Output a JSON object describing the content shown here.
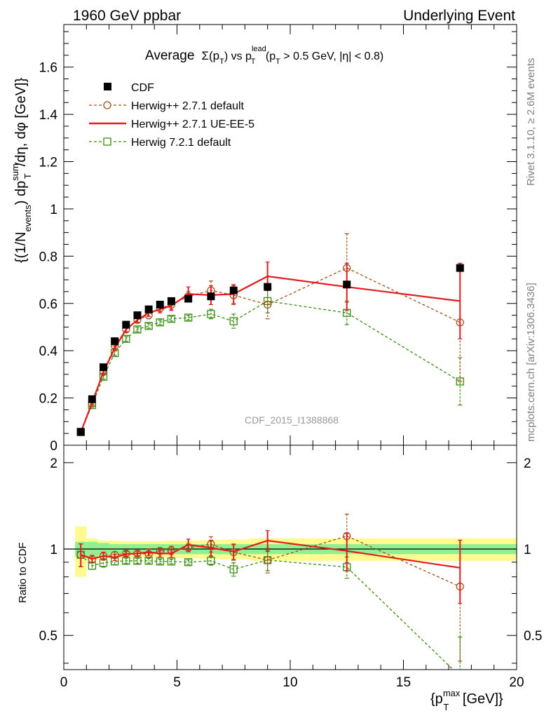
{
  "header": {
    "left": "1960 GeV ppbar",
    "right": "Underlying Event"
  },
  "side_labels": {
    "rivet": "Rivet 3.1.10, ≥ 2.6M events",
    "mcplots": "mcplots.cern.ch [arXiv:1306.3436]"
  },
  "watermark": "CDF_2015_I1388868",
  "main_plot": {
    "title_prefix": "Average",
    "title_sigma": "Σ(p",
    "title_T": "T",
    "title_mid": ") vs p",
    "title_lead": "lead",
    "title_T2": "T",
    "title_cut": " (p",
    "title_T3": "T",
    "title_end": " > 0.5 GeV, |η| < 0.8)",
    "ylabel": "{(1/N_events) dp_T^sum/dη, dφ [GeV]}",
    "ylabel_parts": {
      "a": "{(1/N",
      "b": "events",
      "c": ") dp",
      "d": "sum",
      "e": "T",
      "f": "/dη, dφ [GeV]}"
    },
    "yticks": [
      "0",
      "0.2",
      "0.4",
      "0.6",
      "0.8",
      "1",
      "1.2",
      "1.4",
      "1.6"
    ]
  },
  "ratio_plot": {
    "ylabel": "Ratio to CDF",
    "yticks_left": [
      "0.5",
      "1",
      "2"
    ],
    "yticks_right": [
      "0.5",
      "1",
      "2"
    ]
  },
  "xaxis": {
    "label_a": "{p",
    "label_sup": "max",
    "label_sub": "T",
    "label_b": " [GeV]}",
    "ticks": [
      "0",
      "5",
      "10",
      "15",
      "20"
    ]
  },
  "legend": [
    {
      "name": "CDF",
      "color": "#000000",
      "style": "marker-square"
    },
    {
      "name": "Herwig++ 2.7.1 default",
      "color": "#a0521a",
      "style": "dashed-circle"
    },
    {
      "name": "Herwig++ 2.7.1 UE-EE-5",
      "color": "#e41a1c",
      "style": "solid"
    },
    {
      "name": "Herwig 7.2.1 default",
      "color": "#3a8e10",
      "style": "dashed-square"
    }
  ],
  "chart_data": {
    "type": "line",
    "title": "Average Σ(p_T) vs p_T^lead (p_T > 0.5 GeV, |η| < 0.8)",
    "xlabel": "{p_T^max [GeV]}",
    "ylabel": "{(1/N_events) dp_T^sum/dη, dφ [GeV]}",
    "xlim": [
      0,
      20
    ],
    "ylim": [
      0,
      1.78
    ],
    "ratio_ylim_log": [
      0.38,
      2.3
    ],
    "x": [
      0.75,
      1.25,
      1.75,
      2.25,
      2.75,
      3.25,
      3.75,
      4.25,
      4.75,
      5.5,
      6.5,
      7.5,
      9.0,
      12.5,
      17.5
    ],
    "series": [
      {
        "name": "CDF",
        "values": [
          0.057,
          0.195,
          0.33,
          0.44,
          0.51,
          0.55,
          0.575,
          0.595,
          0.61,
          0.62,
          0.63,
          0.655,
          0.67,
          0.68,
          0.75
        ],
        "band_inner": [
          0.06,
          0.06,
          0.05,
          0.04,
          0.04,
          0.04,
          0.04,
          0.04,
          0.04,
          0.04,
          0.04,
          0.04,
          0.04,
          0.04,
          0.04
        ],
        "band_outer": [
          0.2,
          0.09,
          0.07,
          0.07,
          0.065,
          0.065,
          0.065,
          0.065,
          0.07,
          0.07,
          0.075,
          0.08,
          0.09,
          0.09,
          0.09
        ]
      },
      {
        "name": "Herwig++ 2.7.1 default",
        "values": [
          0.055,
          0.175,
          0.31,
          0.42,
          0.49,
          0.53,
          0.55,
          0.58,
          0.595,
          0.63,
          0.655,
          0.635,
          0.595,
          0.75,
          0.52
        ],
        "errors": [
          0.005,
          0.005,
          0.01,
          0.01,
          0.01,
          0.01,
          0.015,
          0.015,
          0.02,
          0.02,
          0.04,
          0.04,
          0.06,
          0.145,
          0.25
        ]
      },
      {
        "name": "Herwig++ 2.7.1 UE-EE-5",
        "values": [
          0.055,
          0.18,
          0.31,
          0.41,
          0.49,
          0.53,
          0.56,
          0.575,
          0.59,
          0.64,
          0.635,
          0.64,
          0.715,
          0.67,
          0.61
        ],
        "errors": [
          0.005,
          0.005,
          0.01,
          0.01,
          0.01,
          0.01,
          0.015,
          0.015,
          0.02,
          0.03,
          0.04,
          0.04,
          0.06,
          0.1,
          0.16
        ]
      },
      {
        "name": "Herwig 7.2.1 default",
        "values": [
          0.055,
          0.17,
          0.29,
          0.39,
          0.45,
          0.49,
          0.505,
          0.52,
          0.535,
          0.54,
          0.555,
          0.525,
          0.61,
          0.56,
          0.27
        ],
        "errors": [
          0.005,
          0.005,
          0.01,
          0.01,
          0.01,
          0.01,
          0.01,
          0.01,
          0.01,
          0.01,
          0.02,
          0.03,
          0.05,
          0.05,
          0.1
        ]
      }
    ],
    "ratio": {
      "Herwig++ 2.7.1 default": [
        0.955,
        0.92,
        0.945,
        0.955,
        0.965,
        0.965,
        0.96,
        0.985,
        0.99,
        1.01,
        1.04,
        0.975,
        0.915,
        1.11,
        0.74
      ],
      "Herwig++ 2.7.1 UE-EE-5": [
        0.955,
        0.925,
        0.945,
        0.935,
        0.96,
        0.965,
        0.975,
        0.965,
        0.965,
        1.035,
        1.01,
        0.98,
        1.07,
        0.985,
        0.86
      ],
      "Herwig 7.2.1 default": [
        0.955,
        0.875,
        0.895,
        0.905,
        0.91,
        0.91,
        0.91,
        0.905,
        0.905,
        0.9,
        0.91,
        0.85,
        0.915,
        0.865,
        0.36
      ]
    }
  }
}
